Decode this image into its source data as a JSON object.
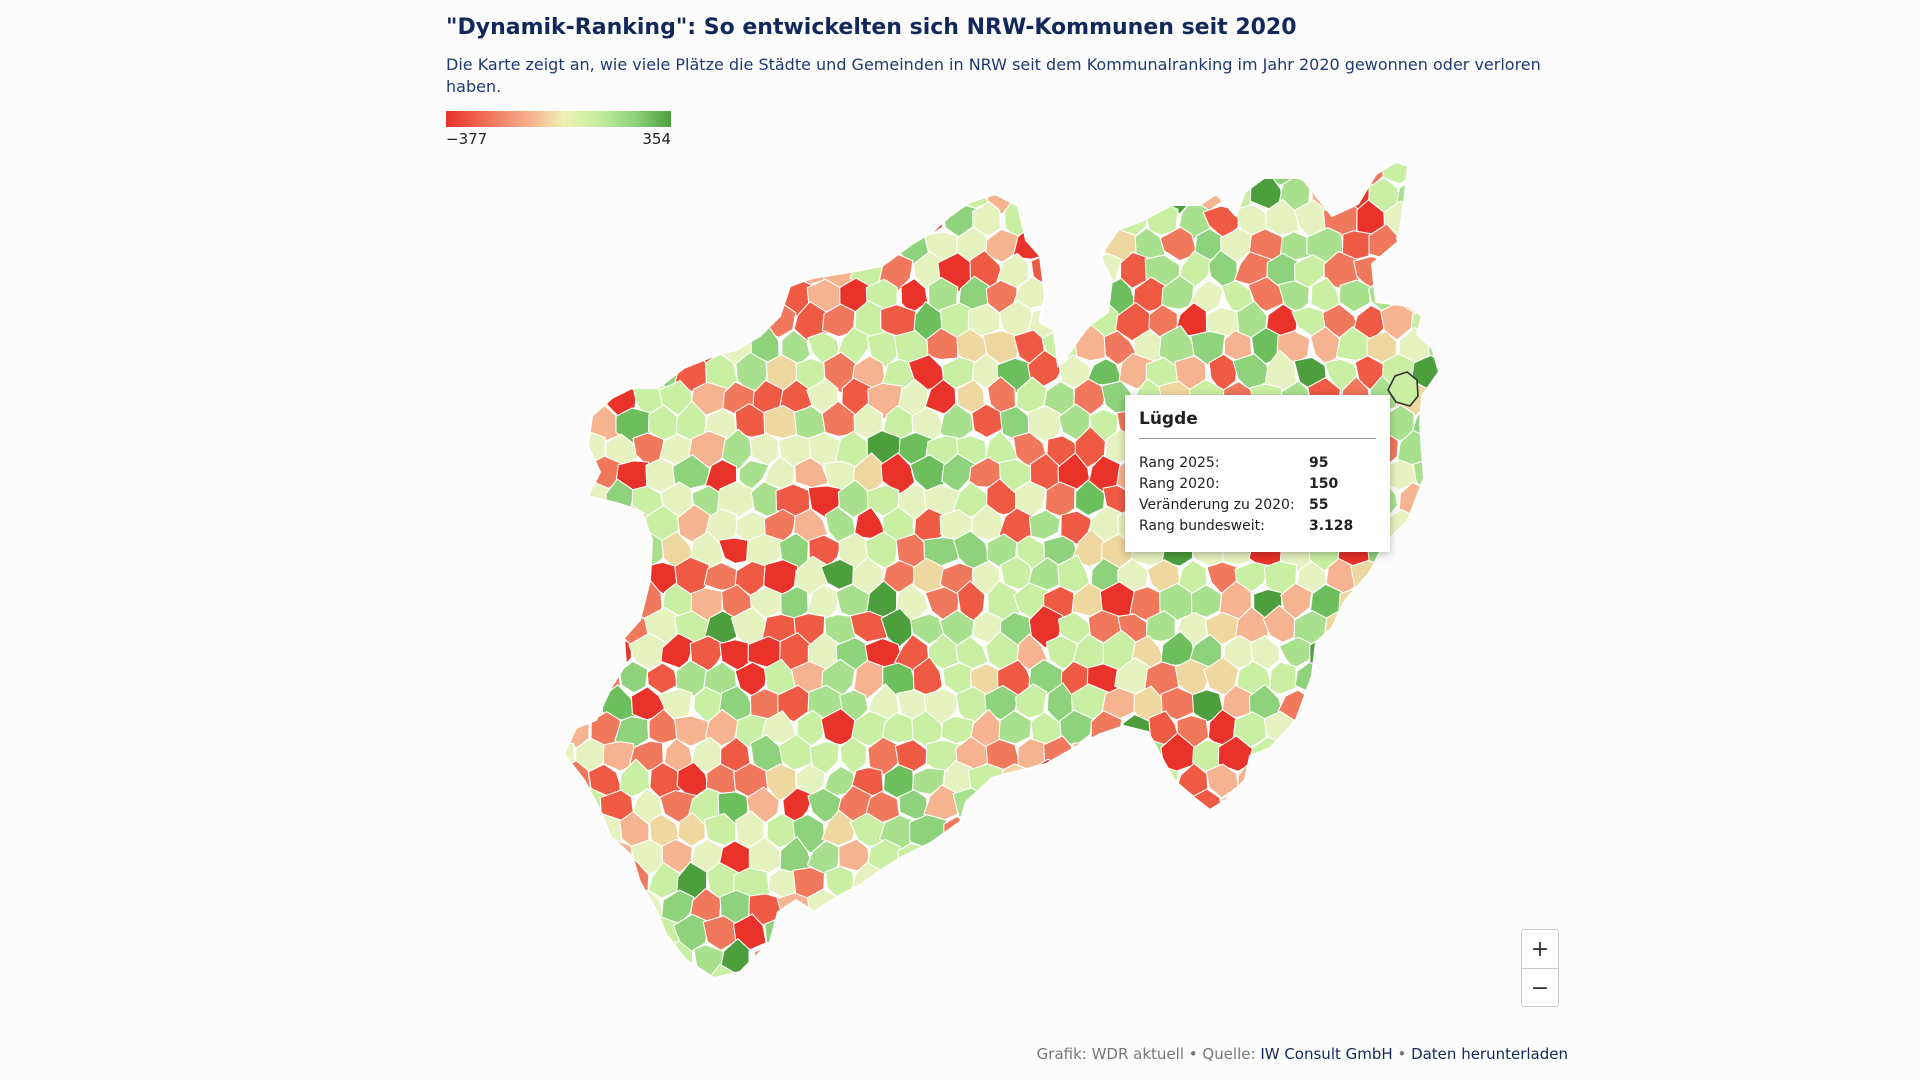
{
  "header": {
    "title": "\"Dynamik-Ranking\": So entwickelten sich NRW-Kommunen seit 2020",
    "subtitle": "Die Karte zeigt an, wie viele Plätze die Städte und Gemeinden in NRW seit dem Kommunalranking im Jahr 2020 gewonnen oder verloren haben."
  },
  "legend": {
    "min_label": "−377",
    "max_label": "354",
    "colors": [
      "#e8322a",
      "#f0785c",
      "#f6b38f",
      "#eef0b4",
      "#c8efa2",
      "#8fd27c",
      "#4d9e3c"
    ]
  },
  "map": {
    "palette": [
      "#e8322a",
      "#ef5a45",
      "#f0785c",
      "#f6b38f",
      "#efd7a0",
      "#e6f2c0",
      "#c8efa2",
      "#a9e08e",
      "#8fd27c",
      "#6cbf5c",
      "#4d9e3c"
    ],
    "highlighted_area": "Lügde"
  },
  "tooltip": {
    "name": "Lügde",
    "rows": [
      {
        "label": "Rang 2025:",
        "value": "95"
      },
      {
        "label": "Rang 2020:",
        "value": "150"
      },
      {
        "label": "Veränderung zu 2020:",
        "value": "55"
      },
      {
        "label": "Rang bundesweit:",
        "value": "3.128"
      }
    ]
  },
  "zoom": {
    "in_label": "+",
    "out_label": "−"
  },
  "credit": {
    "prefix": "Grafik: WDR aktuell • Quelle: ",
    "source": "IW Consult GmbH",
    "sep": " • ",
    "download": "Daten herunterladen"
  }
}
